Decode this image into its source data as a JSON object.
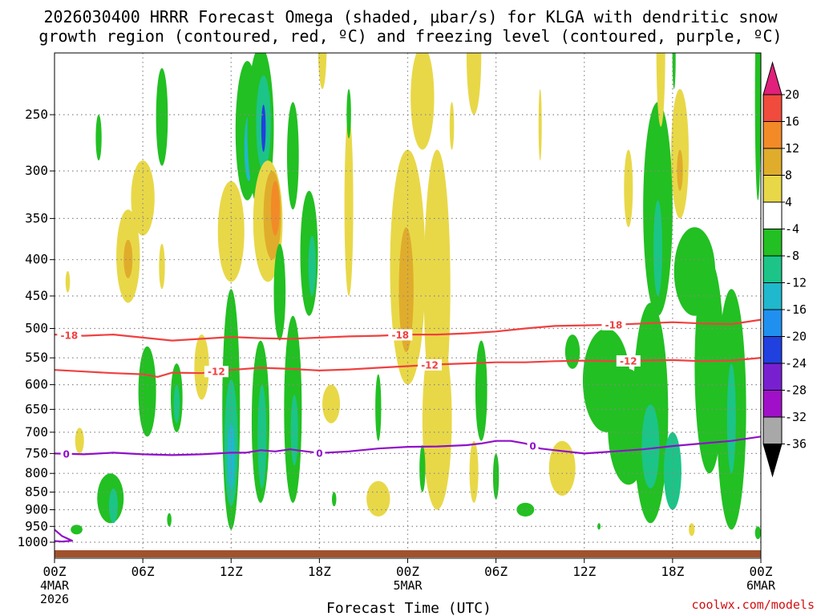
{
  "colors": {
    "background": "#ffffff",
    "grid": "#888888",
    "dsgz_contour": "#f04040",
    "freezing_contour": "#9010c8",
    "terrain": "#a0522d",
    "credit": "#d01010"
  },
  "chart_data": {
    "type": "heatmap",
    "title_line1": "2026030400 HRRR Forecast Omega (shaded, μbar/s) for KLGA with dendritic snow",
    "title_line2": "growth region (contoured, red, ºC) and freezing level (contoured, purple, ºC)",
    "xlabel": "Forecast Time (UTC)",
    "ylabel": "",
    "credit": "coolwx.com/models",
    "x_range_hours": [
      0,
      48
    ],
    "y_range_hpa": [
      1000,
      200
    ],
    "y_scale": "log-pressure",
    "x_ticks": [
      {
        "hour": 0,
        "label": "00Z",
        "sub1": "4MAR",
        "sub2": "2026"
      },
      {
        "hour": 6,
        "label": "06Z"
      },
      {
        "hour": 12,
        "label": "12Z"
      },
      {
        "hour": 18,
        "label": "18Z"
      },
      {
        "hour": 24,
        "label": "00Z",
        "sub1": "5MAR"
      },
      {
        "hour": 30,
        "label": "06Z"
      },
      {
        "hour": 36,
        "label": "12Z"
      },
      {
        "hour": 42,
        "label": "18Z"
      },
      {
        "hour": 48,
        "label": "00Z",
        "sub1": "6MAR"
      }
    ],
    "y_ticks": [
      250,
      300,
      350,
      400,
      450,
      500,
      550,
      600,
      650,
      700,
      750,
      800,
      850,
      900,
      950,
      1000
    ],
    "colorbar": {
      "labels": [
        "20",
        "16",
        "12",
        "8",
        "4",
        "-4",
        "-8",
        "-12",
        "-16",
        "-20",
        "-24",
        "-28",
        "-32",
        "-36"
      ],
      "bins": [
        {
          "lo": 20,
          "hi": 24,
          "color": "#e0207a"
        },
        {
          "lo": 16,
          "hi": 20,
          "color": "#f04b3c"
        },
        {
          "lo": 12,
          "hi": 16,
          "color": "#f28a28"
        },
        {
          "lo": 8,
          "hi": 12,
          "color": "#e0ac2c"
        },
        {
          "lo": 4,
          "hi": 8,
          "color": "#e8d848"
        },
        {
          "lo": -4,
          "hi": 4,
          "color": "#ffffff"
        },
        {
          "lo": -8,
          "hi": -4,
          "color": "#22c022"
        },
        {
          "lo": -12,
          "hi": -8,
          "color": "#1cc488"
        },
        {
          "lo": -16,
          "hi": -12,
          "color": "#20b8cc"
        },
        {
          "lo": -20,
          "hi": -16,
          "color": "#2090f0"
        },
        {
          "lo": -24,
          "hi": -20,
          "color": "#2040e0"
        },
        {
          "lo": -28,
          "hi": -24,
          "color": "#7820d0"
        },
        {
          "lo": -32,
          "hi": -28,
          "color": "#a010c8"
        },
        {
          "lo": -36,
          "hi": -32,
          "color": "#a8a8a8"
        },
        {
          "lo": -40,
          "hi": -36,
          "color": "#000000"
        }
      ]
    },
    "omega_cells": [
      {
        "t": 3.0,
        "p": 270,
        "dt": 0.2,
        "dp": 20,
        "v": -6
      },
      {
        "t": 5.0,
        "p": 400,
        "dt": 0.8,
        "dp": 60,
        "v": 6
      },
      {
        "t": 5.0,
        "p": 400,
        "dt": 0.3,
        "dp": 25,
        "v": 9
      },
      {
        "t": 7.3,
        "p": 410,
        "dt": 0.2,
        "dp": 30,
        "v": 5
      },
      {
        "t": 6.0,
        "p": 330,
        "dt": 0.8,
        "dp": 40,
        "v": 5
      },
      {
        "t": 0.9,
        "p": 430,
        "dt": 0.15,
        "dp": 15,
        "v": 5
      },
      {
        "t": 7.0,
        "p": 200,
        "dt": 0.1,
        "dp": 5,
        "v": 0
      },
      {
        "t": 7.3,
        "p": 255,
        "dt": 0.4,
        "dp": 40,
        "v": -6
      },
      {
        "t": 6.3,
        "p": 620,
        "dt": 0.6,
        "dp": 90,
        "v": -6
      },
      {
        "t": 8.3,
        "p": 630,
        "dt": 0.4,
        "dp": 70,
        "v": -6
      },
      {
        "t": 8.3,
        "p": 640,
        "dt": 0.2,
        "dp": 40,
        "v": -10
      },
      {
        "t": 12.0,
        "p": 370,
        "dt": 0.9,
        "dp": 60,
        "v": 5
      },
      {
        "t": 12.0,
        "p": 700,
        "dt": 0.6,
        "dp": 260,
        "v": -6
      },
      {
        "t": 12.0,
        "p": 740,
        "dt": 0.45,
        "dp": 150,
        "v": -10
      },
      {
        "t": 12.0,
        "p": 760,
        "dt": 0.25,
        "dp": 80,
        "v": -14
      },
      {
        "t": 13.1,
        "p": 270,
        "dt": 0.8,
        "dp": 60,
        "v": -6
      },
      {
        "t": 13.2,
        "p": 280,
        "dt": 0.3,
        "dp": 30,
        "v": -14
      },
      {
        "t": 14.0,
        "p": 270,
        "dt": 0.9,
        "dp": 70,
        "v": -6
      },
      {
        "t": 14.2,
        "p": 260,
        "dt": 0.5,
        "dp": 40,
        "v": -12
      },
      {
        "t": 14.2,
        "p": 262,
        "dt": 0.15,
        "dp": 20,
        "v": -22
      },
      {
        "t": 14.5,
        "p": 360,
        "dt": 1.0,
        "dp": 70,
        "v": 6
      },
      {
        "t": 14.8,
        "p": 350,
        "dt": 0.6,
        "dp": 50,
        "v": 9
      },
      {
        "t": 15.0,
        "p": 340,
        "dt": 0.3,
        "dp": 30,
        "v": 13
      },
      {
        "t": 14.0,
        "p": 700,
        "dt": 0.6,
        "dp": 180,
        "v": -6
      },
      {
        "t": 14.1,
        "p": 720,
        "dt": 0.3,
        "dp": 120,
        "v": -12
      },
      {
        "t": 15.3,
        "p": 450,
        "dt": 0.4,
        "dp": 70,
        "v": -6
      },
      {
        "t": 16.2,
        "p": 290,
        "dt": 0.4,
        "dp": 50,
        "v": -6
      },
      {
        "t": 17.3,
        "p": 400,
        "dt": 0.6,
        "dp": 80,
        "v": -6
      },
      {
        "t": 17.5,
        "p": 410,
        "dt": 0.25,
        "dp": 40,
        "v": -12
      },
      {
        "t": 16.2,
        "p": 680,
        "dt": 0.6,
        "dp": 200,
        "v": -6
      },
      {
        "t": 16.3,
        "p": 700,
        "dt": 0.25,
        "dp": 80,
        "v": -10
      },
      {
        "t": 18.2,
        "p": 200,
        "dt": 0.3,
        "dp": 30,
        "v": 5
      },
      {
        "t": 18.8,
        "p": 640,
        "dt": 0.6,
        "dp": 40,
        "v": 5
      },
      {
        "t": 20.0,
        "p": 350,
        "dt": 0.3,
        "dp": 100,
        "v": 6
      },
      {
        "t": 20.0,
        "p": 250,
        "dt": 0.15,
        "dp": 20,
        "v": -6
      },
      {
        "t": 22.0,
        "p": 870,
        "dt": 0.8,
        "dp": 50,
        "v": 5
      },
      {
        "t": 19.0,
        "p": 870,
        "dt": 0.15,
        "dp": 20,
        "v": -6
      },
      {
        "t": 22.0,
        "p": 650,
        "dt": 0.2,
        "dp": 70,
        "v": -6
      },
      {
        "t": 24.0,
        "p": 440,
        "dt": 1.2,
        "dp": 160,
        "v": 5
      },
      {
        "t": 23.9,
        "p": 450,
        "dt": 0.5,
        "dp": 90,
        "v": 9
      },
      {
        "t": 26.0,
        "p": 480,
        "dt": 0.9,
        "dp": 200,
        "v": 6
      },
      {
        "t": 26.0,
        "p": 700,
        "dt": 1.0,
        "dp": 200,
        "v": 6
      },
      {
        "t": 25.0,
        "p": 240,
        "dt": 0.8,
        "dp": 40,
        "v": 5
      },
      {
        "t": 27.0,
        "p": 260,
        "dt": 0.15,
        "dp": 20,
        "v": 6
      },
      {
        "t": 28.5,
        "p": 210,
        "dt": 0.5,
        "dp": 40,
        "v": 6
      },
      {
        "t": 29.0,
        "p": 620,
        "dt": 0.4,
        "dp": 100,
        "v": -6
      },
      {
        "t": 25.0,
        "p": 790,
        "dt": 0.2,
        "dp": 60,
        "v": -6
      },
      {
        "t": 28.5,
        "p": 800,
        "dt": 0.3,
        "dp": 80,
        "v": 6
      },
      {
        "t": 30.0,
        "p": 810,
        "dt": 0.2,
        "dp": 60,
        "v": -6
      },
      {
        "t": 32.0,
        "p": 900,
        "dt": 0.6,
        "dp": 20,
        "v": -6
      },
      {
        "t": 33.0,
        "p": 260,
        "dt": 0.1,
        "dp": 30,
        "v": 5
      },
      {
        "t": 34.5,
        "p": 790,
        "dt": 0.9,
        "dp": 70,
        "v": 6
      },
      {
        "t": 35.2,
        "p": 540,
        "dt": 0.5,
        "dp": 30,
        "v": -6
      },
      {
        "t": 37.5,
        "p": 600,
        "dt": 1.6,
        "dp": 100,
        "v": -6
      },
      {
        "t": 39.0,
        "p": 700,
        "dt": 1.4,
        "dp": 130,
        "v": -6
      },
      {
        "t": 40.5,
        "p": 700,
        "dt": 1.2,
        "dp": 240,
        "v": -6
      },
      {
        "t": 40.5,
        "p": 740,
        "dt": 0.6,
        "dp": 100,
        "v": -12
      },
      {
        "t": 42.0,
        "p": 800,
        "dt": 0.6,
        "dp": 100,
        "v": -10
      },
      {
        "t": 41.0,
        "p": 360,
        "dt": 1.0,
        "dp": 120,
        "v": -6
      },
      {
        "t": 41.0,
        "p": 390,
        "dt": 0.3,
        "dp": 60,
        "v": -10
      },
      {
        "t": 39.0,
        "p": 320,
        "dt": 0.3,
        "dp": 40,
        "v": 6
      },
      {
        "t": 42.5,
        "p": 290,
        "dt": 0.6,
        "dp": 60,
        "v": 5
      },
      {
        "t": 42.5,
        "p": 300,
        "dt": 0.2,
        "dp": 20,
        "v": 8
      },
      {
        "t": 41.2,
        "p": 210,
        "dt": 0.3,
        "dp": 50,
        "v": 6
      },
      {
        "t": 42.1,
        "p": 210,
        "dt": 0.1,
        "dp": 20,
        "v": -6
      },
      {
        "t": 43.5,
        "p": 420,
        "dt": 1.4,
        "dp": 60,
        "v": -6
      },
      {
        "t": 44.5,
        "p": 600,
        "dt": 1.0,
        "dp": 200,
        "v": -6
      },
      {
        "t": 46.0,
        "p": 700,
        "dt": 1.0,
        "dp": 260,
        "v": -6
      },
      {
        "t": 46.0,
        "p": 680,
        "dt": 0.3,
        "dp": 120,
        "v": -10
      },
      {
        "t": 47.8,
        "p": 250,
        "dt": 0.2,
        "dp": 80,
        "v": -6
      },
      {
        "t": 47.8,
        "p": 970,
        "dt": 0.2,
        "dp": 20,
        "v": -6
      },
      {
        "t": 43.3,
        "p": 960,
        "dt": 0.2,
        "dp": 20,
        "v": 5
      },
      {
        "t": 37.0,
        "p": 950,
        "dt": 0.1,
        "dp": 10,
        "v": -6
      },
      {
        "t": 3.8,
        "p": 870,
        "dt": 0.9,
        "dp": 70,
        "v": -6
      },
      {
        "t": 4.0,
        "p": 890,
        "dt": 0.3,
        "dp": 50,
        "v": -10
      },
      {
        "t": 1.5,
        "p": 960,
        "dt": 0.4,
        "dp": 15,
        "v": -6
      },
      {
        "t": 1.7,
        "p": 720,
        "dt": 0.3,
        "dp": 30,
        "v": 6
      },
      {
        "t": 7.8,
        "p": 930,
        "dt": 0.15,
        "dp": 20,
        "v": -6
      },
      {
        "t": 10.0,
        "p": 570,
        "dt": 0.5,
        "dp": 60,
        "v": 5
      }
    ],
    "dsgz_contours": [
      {
        "label": "-18",
        "label_hours": [
          1.0,
          23.5,
          38.0
        ],
        "points": [
          [
            0,
            510
          ],
          [
            2,
            512
          ],
          [
            4,
            510
          ],
          [
            6,
            515
          ],
          [
            8,
            520
          ],
          [
            10,
            517
          ],
          [
            12,
            514
          ],
          [
            14,
            516
          ],
          [
            16,
            517
          ],
          [
            18,
            515
          ],
          [
            20,
            513
          ],
          [
            22,
            512
          ],
          [
            24,
            510
          ],
          [
            26,
            510
          ],
          [
            28,
            508
          ],
          [
            30,
            505
          ],
          [
            32,
            500
          ],
          [
            34,
            496
          ],
          [
            36,
            495
          ],
          [
            38,
            494
          ],
          [
            40,
            492
          ],
          [
            42,
            490
          ],
          [
            44,
            492
          ],
          [
            46,
            493
          ],
          [
            48,
            486
          ]
        ]
      },
      {
        "label": "-12",
        "label_hours": [
          11.0,
          25.5,
          39.0
        ],
        "points": [
          [
            0,
            572
          ],
          [
            2,
            575
          ],
          [
            4,
            578
          ],
          [
            6,
            580
          ],
          [
            7,
            585
          ],
          [
            8,
            577
          ],
          [
            10,
            578
          ],
          [
            12,
            572
          ],
          [
            14,
            568
          ],
          [
            16,
            570
          ],
          [
            18,
            573
          ],
          [
            20,
            571
          ],
          [
            22,
            568
          ],
          [
            24,
            565
          ],
          [
            26,
            562
          ],
          [
            28,
            560
          ],
          [
            30,
            558
          ],
          [
            32,
            558
          ],
          [
            34,
            556
          ],
          [
            36,
            555
          ],
          [
            38,
            556
          ],
          [
            40,
            555
          ],
          [
            42,
            554
          ],
          [
            44,
            556
          ],
          [
            46,
            555
          ],
          [
            48,
            550
          ]
        ]
      }
    ],
    "freezing_contours": [
      {
        "label": "0",
        "label_hours": [
          0.8,
          18.0,
          32.5
        ],
        "points": [
          [
            0,
            750
          ],
          [
            2,
            752
          ],
          [
            4,
            748
          ],
          [
            6,
            752
          ],
          [
            8,
            754
          ],
          [
            10,
            752
          ],
          [
            12,
            748
          ],
          [
            13,
            748
          ],
          [
            14,
            742
          ],
          [
            15,
            745
          ],
          [
            16,
            740
          ],
          [
            18,
            749
          ],
          [
            20,
            745
          ],
          [
            22,
            738
          ],
          [
            24,
            734
          ],
          [
            26,
            733
          ],
          [
            28,
            730
          ],
          [
            29,
            726
          ],
          [
            30,
            720
          ],
          [
            31,
            720
          ],
          [
            32,
            726
          ],
          [
            33,
            738
          ],
          [
            34,
            742
          ],
          [
            36,
            750
          ],
          [
            38,
            745
          ],
          [
            40,
            740
          ],
          [
            42,
            732
          ],
          [
            44,
            726
          ],
          [
            46,
            720
          ],
          [
            48,
            710
          ]
        ]
      },
      {
        "label": "",
        "label_hours": [],
        "points": [
          [
            0,
            960
          ],
          [
            0.5,
            980
          ],
          [
            1.2,
            995
          ],
          [
            0.5,
            998
          ],
          [
            0,
            996
          ]
        ]
      }
    ]
  }
}
